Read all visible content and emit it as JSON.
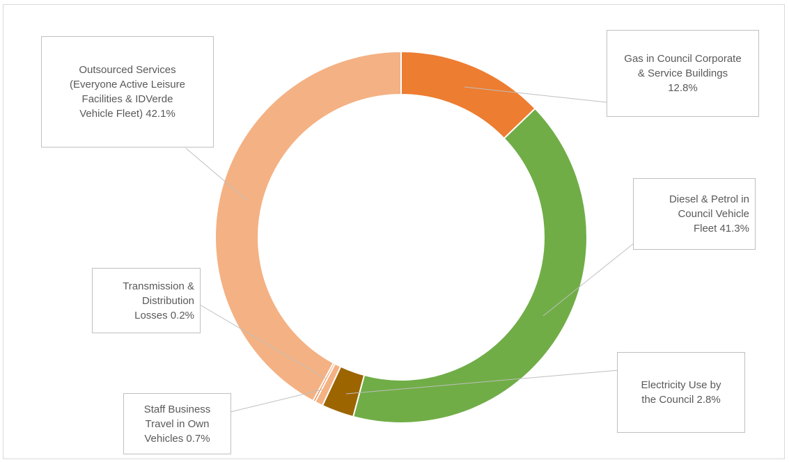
{
  "chart_data": {
    "type": "pie",
    "slices": [
      {
        "lines": [
          "Gas in Council Corporate",
          "& Service Buildings",
          "12.8%"
        ],
        "value": 12.8,
        "color": "#ed7d31"
      },
      {
        "lines": [
          "Diesel & Petrol in",
          "Council Vehicle",
          "Fleet 41.3%"
        ],
        "value": 41.3,
        "color": "#70ad47"
      },
      {
        "lines": [
          "Electricity Use by",
          "the Council  2.8%"
        ],
        "value": 2.8,
        "color": "#9c6500"
      },
      {
        "lines": [
          "Staff Business",
          "Travel in Own",
          "Vehicles 0.7%"
        ],
        "value": 0.7,
        "color": "#f4b183"
      },
      {
        "lines": [
          "Transmission &",
          "Distribution",
          "Losses 0.2%"
        ],
        "value": 0.2,
        "color": "#ed7d31"
      },
      {
        "lines": [
          "Outsourced Services",
          "(Everyone Active Leisure",
          "Facilities & IDVerde",
          "Vehicle Fleet)  42.1%"
        ],
        "value": 42.1,
        "color": "#f4b183"
      }
    ]
  }
}
